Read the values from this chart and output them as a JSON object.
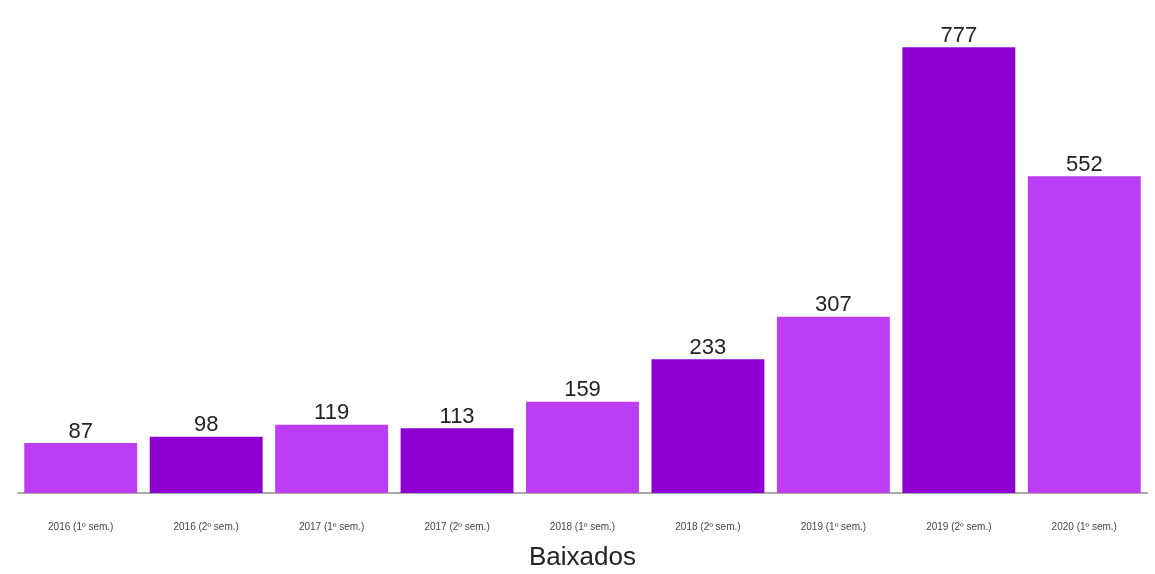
{
  "chart_data": {
    "type": "bar",
    "xlabel": "Baixados",
    "categories": [
      "2016 (1º sem.)",
      "2016 (2º sem.)",
      "2017 (1º sem.)",
      "2017 (2º sem.)",
      "2018 (1º sem.)",
      "2018 (2º sem.)",
      "2019 (1º sem.)",
      "2019 (2º sem.)",
      "2020 (1º sem.)"
    ],
    "values": [
      87,
      98,
      119,
      113,
      159,
      233,
      307,
      777,
      552
    ],
    "colors": [
      "#bb3ef5",
      "#8e00d2",
      "#bb3ef5",
      "#8e00d2",
      "#bb3ef5",
      "#8e00d2",
      "#bb3ef5",
      "#8e00d2",
      "#bb3ef5"
    ],
    "data_labels": true
  }
}
